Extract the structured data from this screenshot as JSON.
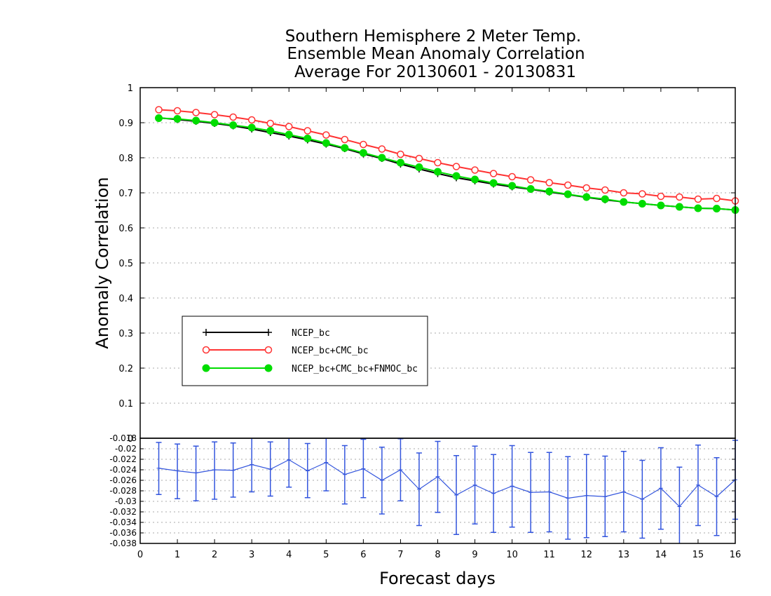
{
  "chart_data": [
    {
      "type": "line",
      "title": [
        "Southern Hemisphere 2 Meter Temp.",
        "Ensemble Mean Anomaly Correlation",
        "Average For 20130601 - 20130831"
      ],
      "ylabel": "Anomaly Correlation",
      "xlabel": "",
      "ylim": [
        0,
        1
      ],
      "xlim": [
        0,
        16
      ],
      "yticks": [
        "0",
        "0.1",
        "0.2",
        "0.3",
        "0.4",
        "0.5",
        "0.6",
        "0.7",
        "0.8",
        "0.9",
        "1"
      ],
      "grid": true,
      "legend_position": "lower-left",
      "x": [
        0.5,
        1,
        1.5,
        2,
        2.5,
        3,
        3.5,
        4,
        4.5,
        5,
        5.5,
        6,
        6.5,
        7,
        7.5,
        8,
        8.5,
        9,
        9.5,
        10,
        10.5,
        11,
        11.5,
        12,
        12.5,
        13,
        13.5,
        14,
        14.5,
        15,
        15.5,
        16
      ],
      "series": [
        {
          "name": "NCEP_bc",
          "color": "#000000",
          "marker": "plus",
          "values": [
            0.914,
            0.909,
            0.904,
            0.898,
            0.891,
            0.882,
            0.872,
            0.862,
            0.851,
            0.839,
            0.826,
            0.811,
            0.798,
            0.782,
            0.768,
            0.755,
            0.743,
            0.734,
            0.725,
            0.717,
            0.71,
            0.702,
            0.695,
            0.687,
            0.68,
            0.674,
            0.669,
            0.664,
            0.66,
            0.656,
            0.655,
            0.651
          ]
        },
        {
          "name": "NCEP_bc+CMC_bc",
          "color": "#ff3333",
          "marker": "open-circle",
          "values": [
            0.937,
            0.934,
            0.929,
            0.923,
            0.916,
            0.908,
            0.898,
            0.889,
            0.877,
            0.865,
            0.852,
            0.838,
            0.825,
            0.81,
            0.798,
            0.786,
            0.775,
            0.765,
            0.755,
            0.746,
            0.737,
            0.729,
            0.722,
            0.714,
            0.708,
            0.7,
            0.697,
            0.69,
            0.688,
            0.682,
            0.684,
            0.677
          ]
        },
        {
          "name": "NCEP_bc+CMC_bc+FNMOC_bc",
          "color": "#00dd00",
          "marker": "filled-circle",
          "values": [
            0.913,
            0.911,
            0.906,
            0.9,
            0.893,
            0.886,
            0.877,
            0.866,
            0.855,
            0.842,
            0.828,
            0.814,
            0.8,
            0.786,
            0.773,
            0.76,
            0.748,
            0.738,
            0.728,
            0.72,
            0.711,
            0.704,
            0.696,
            0.688,
            0.682,
            0.674,
            0.669,
            0.664,
            0.66,
            0.656,
            0.655,
            0.651
          ]
        }
      ],
      "legend": [
        "NCEP_bc",
        "NCEP_bc+CMC_bc",
        "NCEP_bc+CMC_bc+FNMOC_bc"
      ]
    },
    {
      "type": "line",
      "title": "",
      "xlabel": "Forecast days",
      "ylabel": "",
      "xlim": [
        0,
        16
      ],
      "ylim": [
        -0.038,
        -0.018
      ],
      "xticks": [
        "0",
        "1",
        "2",
        "3",
        "4",
        "5",
        "6",
        "7",
        "8",
        "9",
        "10",
        "11",
        "12",
        "13",
        "14",
        "15",
        "16"
      ],
      "yticks": [
        "-0.038",
        "-0.036",
        "-0.034",
        "-0.032",
        "-0.03",
        "-0.028",
        "-0.026",
        "-0.024",
        "-0.022",
        "-0.02",
        "-0.018"
      ],
      "grid": true,
      "color": "#3355dd",
      "x": [
        0.5,
        1,
        1.5,
        2,
        2.5,
        3,
        3.5,
        4,
        4.5,
        5,
        5.5,
        6,
        6.5,
        7,
        7.5,
        8,
        8.5,
        9,
        9.5,
        10,
        10.5,
        11,
        11.5,
        12,
        12.5,
        13,
        13.5,
        14,
        14.5,
        15,
        15.5,
        16
      ],
      "values": [
        -0.0237,
        -0.0242,
        -0.0246,
        -0.024,
        -0.0241,
        -0.023,
        -0.0239,
        -0.0221,
        -0.0242,
        -0.0226,
        -0.0249,
        -0.0238,
        -0.026,
        -0.024,
        -0.0277,
        -0.0253,
        -0.0288,
        -0.0269,
        -0.0285,
        -0.0271,
        -0.0283,
        -0.0282,
        -0.0294,
        -0.0289,
        -0.0291,
        -0.0282,
        -0.0296,
        -0.0275,
        -0.031,
        -0.0269,
        -0.0291,
        -0.0259
      ],
      "error_low": [
        -0.0287,
        -0.0295,
        -0.0299,
        -0.0296,
        -0.0292,
        -0.0282,
        -0.029,
        -0.0273,
        -0.0293,
        -0.028,
        -0.0305,
        -0.0293,
        -0.0324,
        -0.0299,
        -0.0346,
        -0.0321,
        -0.0363,
        -0.0343,
        -0.0359,
        -0.0349,
        -0.0359,
        -0.0358,
        -0.0372,
        -0.0369,
        -0.0367,
        -0.0358,
        -0.037,
        -0.0353,
        -0.0385,
        -0.0346,
        -0.0365,
        -0.0334
      ],
      "error_high": [
        -0.0188,
        -0.0191,
        -0.0195,
        -0.0187,
        -0.0189,
        -0.0178,
        -0.0187,
        -0.0168,
        -0.019,
        -0.0171,
        -0.0194,
        -0.0182,
        -0.0197,
        -0.0181,
        -0.0208,
        -0.0186,
        -0.0213,
        -0.0195,
        -0.0211,
        -0.0194,
        -0.0207,
        -0.0207,
        -0.0215,
        -0.0211,
        -0.0214,
        -0.0205,
        -0.0222,
        -0.0198,
        -0.0235,
        -0.0193,
        -0.0217,
        -0.0184
      ]
    }
  ]
}
